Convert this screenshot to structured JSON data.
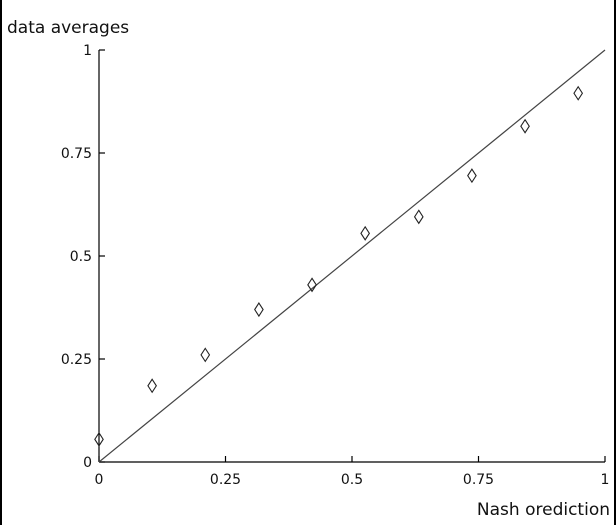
{
  "chart_data": {
    "type": "scatter",
    "title": "",
    "xlabel": "Nash orediction",
    "ylabel": "data averages",
    "xlim": [
      0,
      1
    ],
    "ylim": [
      0,
      1
    ],
    "grid": false,
    "x_ticks": [
      {
        "value": 0,
        "label": "0"
      },
      {
        "value": 0.25,
        "label": "0.25"
      },
      {
        "value": 0.5,
        "label": "0.5"
      },
      {
        "value": 0.75,
        "label": "0.75"
      },
      {
        "value": 1,
        "label": "1"
      }
    ],
    "y_ticks": [
      {
        "value": 0,
        "label": "0"
      },
      {
        "value": 0.25,
        "label": "0.25"
      },
      {
        "value": 0.5,
        "label": "0.5"
      },
      {
        "value": 0.75,
        "label": "0.75"
      },
      {
        "value": 1,
        "label": "1"
      }
    ],
    "series": [
      {
        "marker": "diamond",
        "color": "#222222",
        "points": [
          {
            "x": 0.0,
            "y": 0.055
          },
          {
            "x": 0.105,
            "y": 0.185
          },
          {
            "x": 0.21,
            "y": 0.26
          },
          {
            "x": 0.316,
            "y": 0.37
          },
          {
            "x": 0.421,
            "y": 0.43
          },
          {
            "x": 0.526,
            "y": 0.555
          },
          {
            "x": 0.632,
            "y": 0.595
          },
          {
            "x": 0.737,
            "y": 0.695
          },
          {
            "x": 0.842,
            "y": 0.815
          },
          {
            "x": 0.947,
            "y": 0.895
          }
        ]
      }
    ],
    "reference_line": {
      "from": {
        "x": 0,
        "y": 0
      },
      "to": {
        "x": 1,
        "y": 1
      },
      "color": "#444444"
    }
  }
}
